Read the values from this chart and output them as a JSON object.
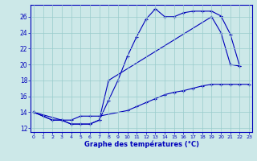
{
  "xlabel": "Graphe des températures (°C)",
  "bg_color": "#cce8e8",
  "line_color": "#0000bb",
  "grid_color": "#99cccc",
  "xlim": [
    -0.3,
    23.3
  ],
  "ylim": [
    11.5,
    27.5
  ],
  "xticks": [
    0,
    1,
    2,
    3,
    4,
    5,
    6,
    7,
    8,
    9,
    10,
    11,
    12,
    13,
    14,
    15,
    16,
    17,
    18,
    19,
    20,
    21,
    22,
    23
  ],
  "yticks": [
    12,
    14,
    16,
    18,
    20,
    22,
    24,
    26
  ],
  "curve1_x": [
    0,
    1,
    2,
    3,
    4,
    5,
    6,
    7,
    8,
    9,
    10,
    11,
    12,
    13,
    14,
    15,
    16,
    17,
    18,
    19,
    20,
    21,
    22
  ],
  "curve1_y": [
    14.0,
    13.5,
    13.0,
    13.0,
    12.5,
    12.5,
    12.5,
    13.0,
    15.5,
    18.0,
    21.0,
    23.5,
    25.7,
    27.0,
    26.0,
    26.0,
    26.5,
    26.7,
    26.7,
    26.7,
    26.1,
    23.8,
    19.8
  ],
  "curve2_x": [
    0,
    2,
    3,
    4,
    5,
    6,
    7,
    8,
    19,
    20,
    21,
    22
  ],
  "curve2_y": [
    14.0,
    13.0,
    13.0,
    12.5,
    12.5,
    12.5,
    13.0,
    18.0,
    26.0,
    24.0,
    20.0,
    19.8
  ],
  "curve3_x": [
    0,
    3,
    4,
    5,
    6,
    7,
    10,
    11,
    12,
    13,
    14,
    15,
    16,
    17,
    18,
    19,
    20,
    21,
    22,
    23
  ],
  "curve3_y": [
    14.0,
    13.0,
    13.0,
    13.5,
    13.5,
    13.5,
    14.2,
    14.7,
    15.2,
    15.7,
    16.2,
    16.5,
    16.7,
    17.0,
    17.3,
    17.5,
    17.5,
    17.5,
    17.5,
    17.5
  ]
}
